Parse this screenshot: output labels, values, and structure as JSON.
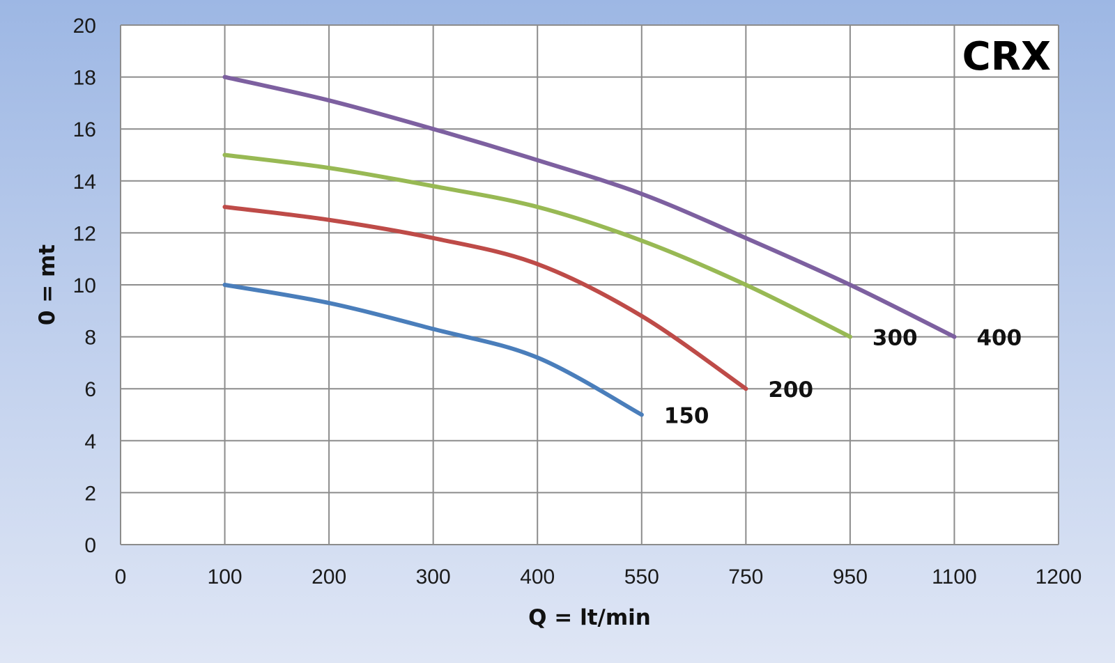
{
  "chart_data": {
    "type": "line",
    "title": "CRX",
    "xlabel": "Q = lt/min",
    "ylabel": "0 = mt",
    "x_tick_labels": [
      "0",
      "100",
      "200",
      "300",
      "400",
      "550",
      "750",
      "950",
      "1100",
      "1200"
    ],
    "y_tick_labels": [
      "0",
      "2",
      "4",
      "6",
      "8",
      "10",
      "12",
      "14",
      "16",
      "18",
      "20"
    ],
    "ylim": [
      0,
      20
    ],
    "grid": true,
    "legend": "none",
    "series": [
      {
        "name": "150",
        "color": "#4a7ebb",
        "x": [
          "100",
          "200",
          "300",
          "400",
          "550"
        ],
        "y": [
          10,
          9.3,
          8.3,
          7.2,
          5
        ]
      },
      {
        "name": "200",
        "color": "#be4b48",
        "x": [
          "100",
          "200",
          "300",
          "400",
          "550",
          "750"
        ],
        "y": [
          13,
          12.5,
          11.8,
          10.8,
          8.8,
          6
        ]
      },
      {
        "name": "300",
        "color": "#98b954",
        "x": [
          "100",
          "200",
          "300",
          "400",
          "550",
          "750",
          "950"
        ],
        "y": [
          15,
          14.5,
          13.8,
          13,
          11.7,
          10,
          8
        ]
      },
      {
        "name": "400",
        "color": "#7d60a0",
        "x": [
          "100",
          "200",
          "300",
          "400",
          "550",
          "750",
          "950",
          "1100"
        ],
        "y": [
          18,
          17.1,
          16,
          14.8,
          13.5,
          11.8,
          10,
          8
        ]
      }
    ]
  }
}
